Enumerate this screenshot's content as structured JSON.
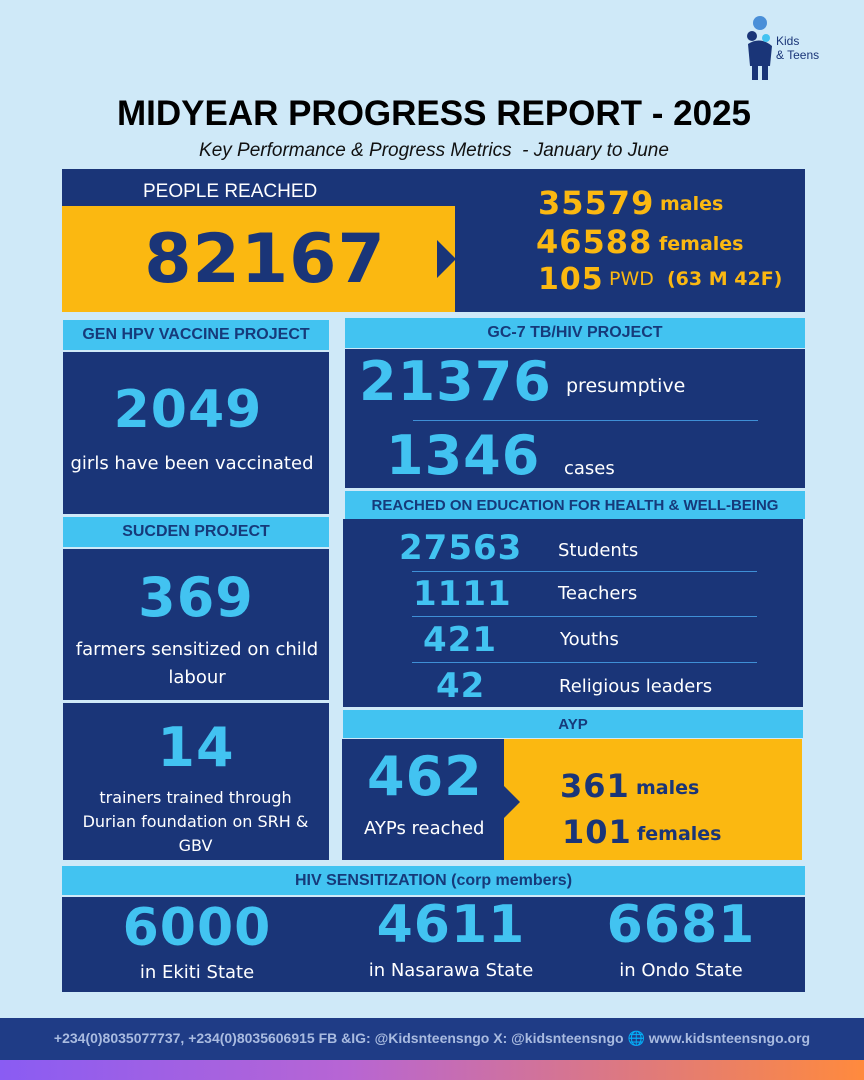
{
  "logo": {
    "line1": "Kids",
    "line2": "& Teens"
  },
  "title": "MIDYEAR PROGRESS REPORT - 2025",
  "subtitle": "Key Performance & Progress Metrics  - January to June",
  "people": {
    "label": "PEOPLE REACHED",
    "total": "82167",
    "males_n": "35579",
    "males_l": "males",
    "females_n": "46588",
    "females_l": "females",
    "pwd_n": "105",
    "pwd_l": "PWD",
    "pwd_detail": "(63 M 42F)"
  },
  "hpv": {
    "header": "GEN HPV VACCINE PROJECT",
    "number": "2049",
    "text": "girls have been vaccinated"
  },
  "gc7": {
    "header": "GC-7 TB/HIV PROJECT",
    "n1": "21376",
    "l1": "presumptive",
    "n2": "1346",
    "l2": "cases"
  },
  "sucden": {
    "header": "SUCDEN PROJECT",
    "number": "369",
    "text": "farmers sensitized on child labour"
  },
  "edu": {
    "header": "REACHED ON EDUCATION FOR HEALTH & WELL-BEING",
    "rows": [
      {
        "n": "27563",
        "l": "Students"
      },
      {
        "n": "1111",
        "l": "Teachers"
      },
      {
        "n": "421",
        "l": "Youths"
      },
      {
        "n": "42",
        "l": "Religious leaders"
      }
    ]
  },
  "trainers": {
    "number": "14",
    "text": "trainers trained through Durian foundation on SRH & GBV"
  },
  "ayp": {
    "header": "AYP",
    "number": "462",
    "text": "AYPs reached",
    "males_n": "361",
    "males_l": "males",
    "females_n": "101",
    "females_l": "females"
  },
  "hiv": {
    "header": "HIV SENSITIZATION (corp members)",
    "cols": [
      {
        "n": "6000",
        "l": "in Ekiti State"
      },
      {
        "n": "4611",
        "l": "in Nasarawa State"
      },
      {
        "n": "6681",
        "l": "in Ondo State"
      }
    ]
  },
  "footer": {
    "contact": "+234(0)8035077737, +234(0)8035606915 FB &IG: @Kidsnteensngo X: @kidsnteensngo",
    "web": "www.kidsnteensngo.org"
  },
  "colors": {
    "navy": "#1a3578",
    "cyan": "#42c3f1",
    "gold": "#fbb811",
    "bg": "#cfe9f8"
  }
}
